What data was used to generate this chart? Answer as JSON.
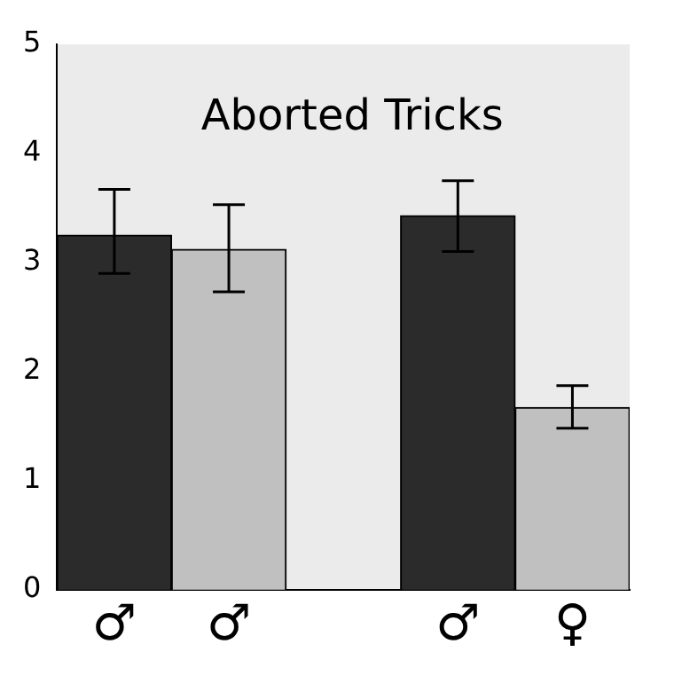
{
  "chart_data": {
    "type": "bar",
    "title": "Aborted Tricks",
    "categories": [
      "♂",
      "♂",
      null,
      "♂",
      "♀"
    ],
    "values": [
      3.25,
      3.12,
      null,
      3.43,
      1.67
    ],
    "colors": [
      "#2b2b2b",
      "#c0c0c0",
      null,
      "#2b2b2b",
      "#c0c0c0"
    ],
    "errors": [
      [
        2.9,
        3.67
      ],
      [
        2.73,
        3.53
      ],
      null,
      [
        3.1,
        3.75
      ],
      [
        1.48,
        1.87
      ]
    ],
    "ylim": [
      0,
      5
    ],
    "yticks": [
      0,
      1,
      2,
      3,
      4,
      5
    ],
    "grid": false
  }
}
